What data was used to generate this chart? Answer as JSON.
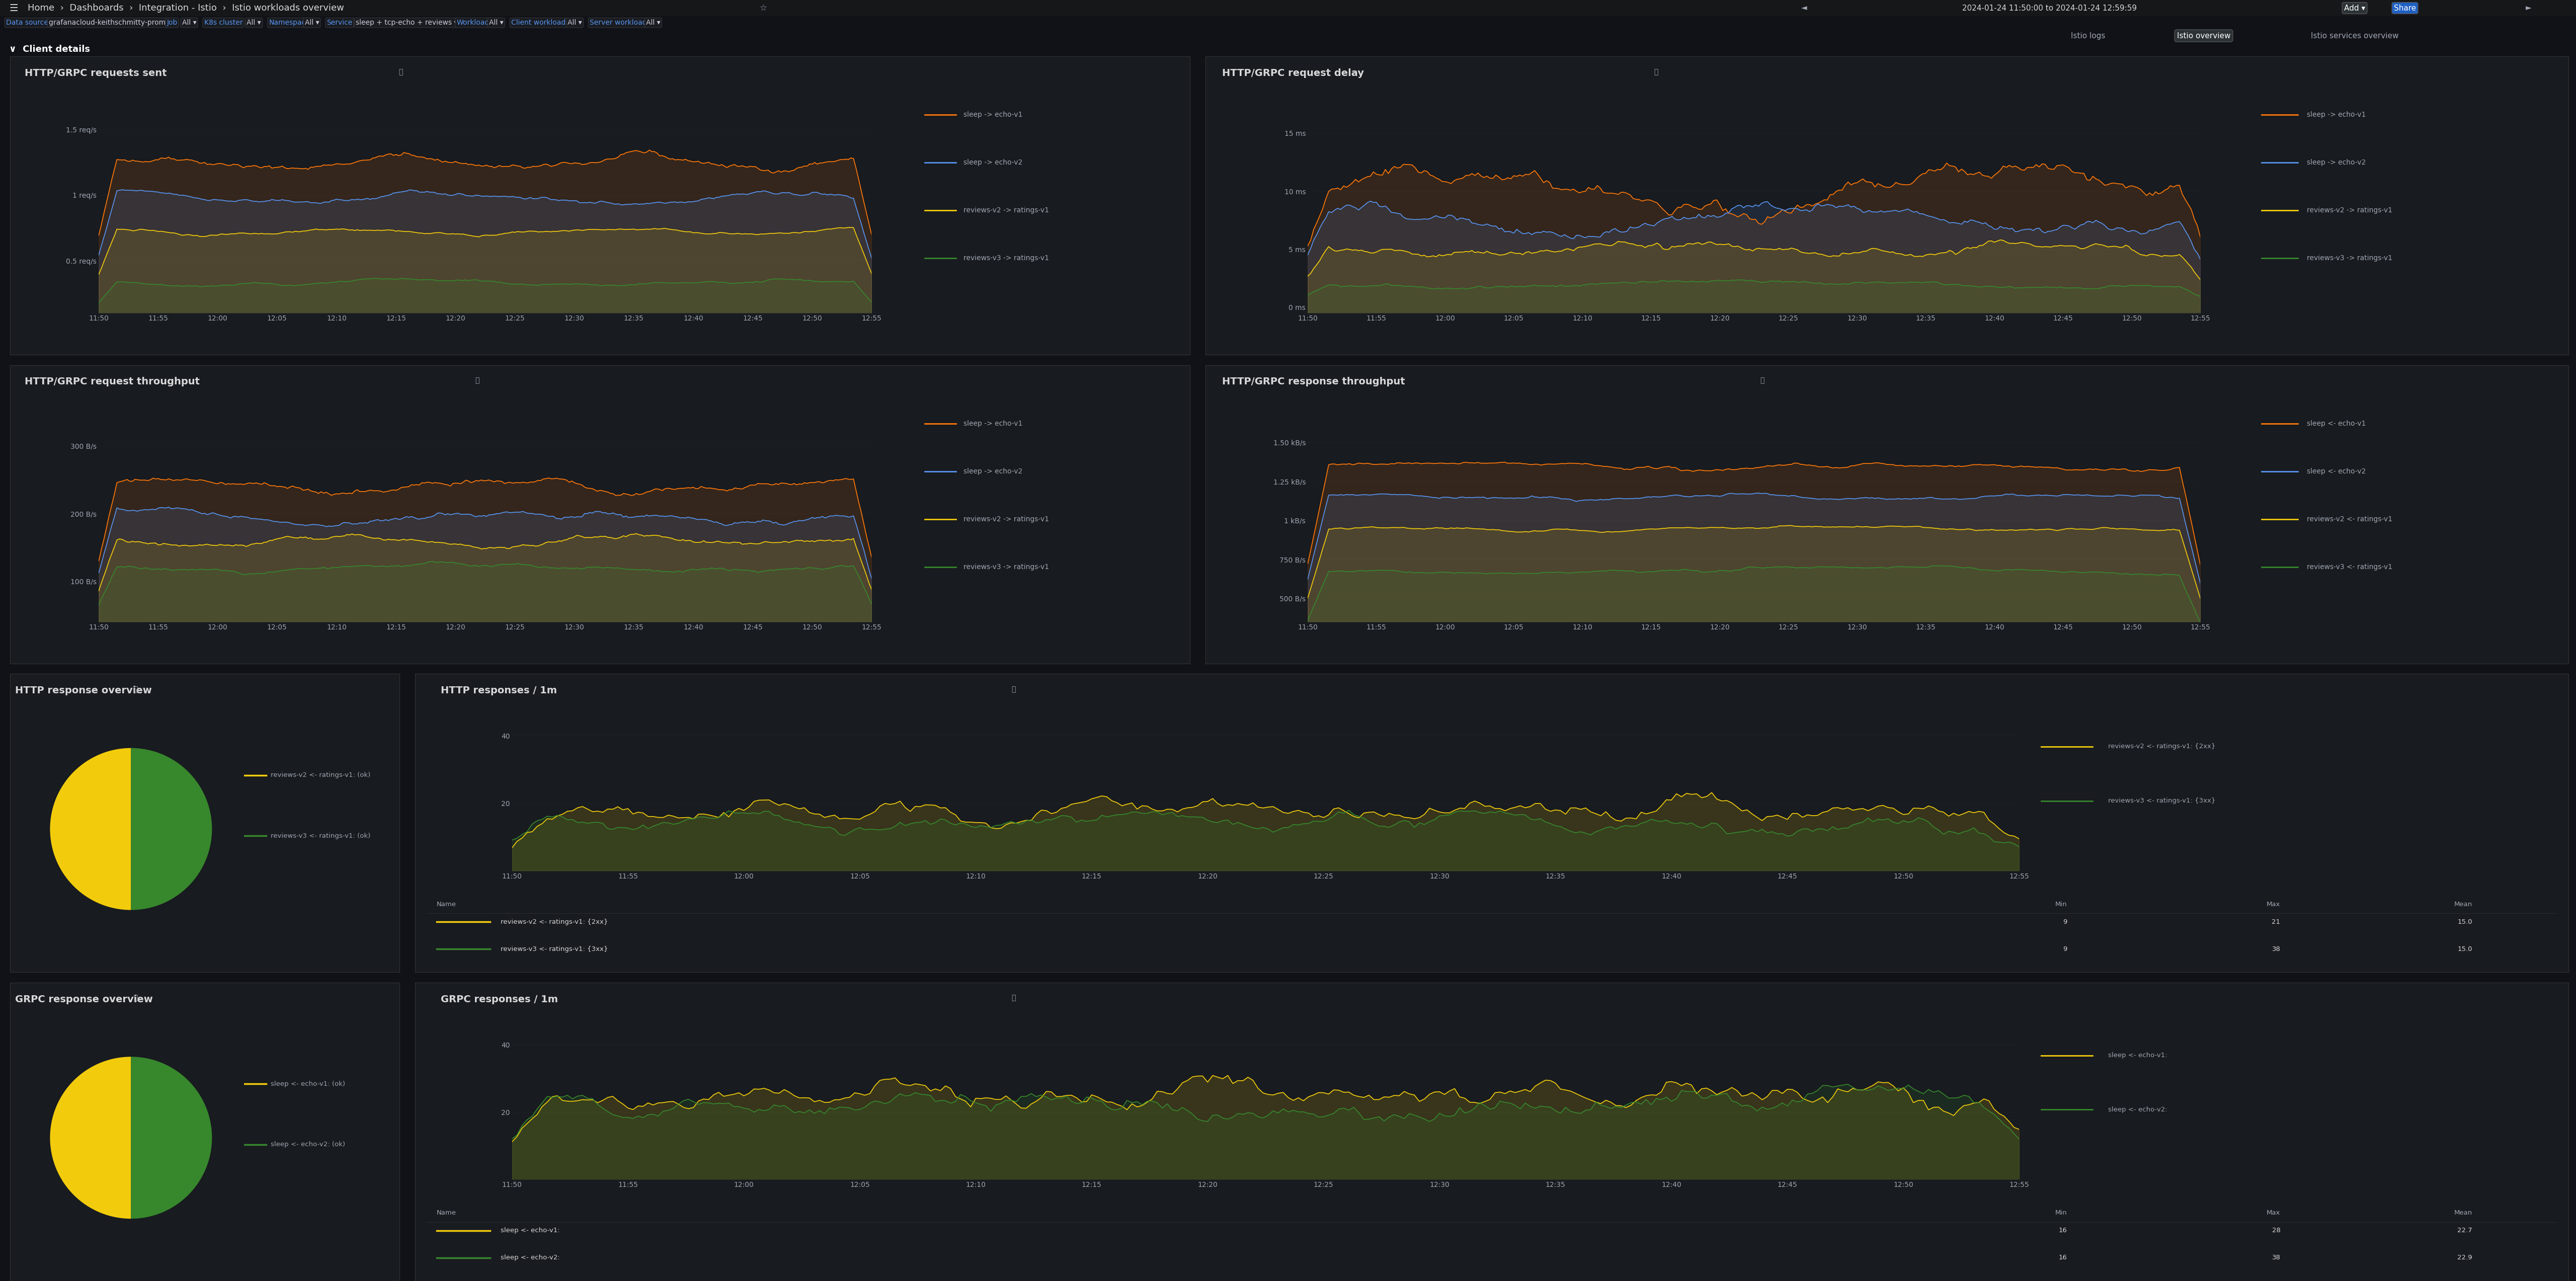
{
  "bg_color": "#111217",
  "panel_bg": "#181b1f",
  "panel_border": "#333333",
  "text_color": "#d8d9da",
  "text_muted": "#9fa7b3",
  "blue_accent": "#5794f2",
  "title_color": "#d8d9da",
  "grid_color": "#222426",
  "time_ticks": [
    "11:50",
    "11:55",
    "12:00",
    "12:05",
    "12:10",
    "12:15",
    "12:20",
    "12:25",
    "12:30",
    "12:35",
    "12:40",
    "12:45",
    "12:50",
    "12:55"
  ],
  "panel1_title": "HTTP/GRPC requests sent",
  "panel1_ylabel_ticks": [
    "0.5 req/s",
    "1 req/s",
    "1.5 req/s"
  ],
  "panel1_ytick_vals": [
    0.5,
    1.0,
    1.5
  ],
  "panel1_legend": [
    "sleep -> echo-v1",
    "sleep -> echo-v2",
    "reviews-v2 -> ratings-v1",
    "reviews-v3 -> ratings-v1"
  ],
  "panel1_colors": [
    "#ff780a",
    "#5794f2",
    "#f2cc0c",
    "#37872d"
  ],
  "panel2_title": "HTTP/GRPC request delay",
  "panel2_ylabel_ticks": [
    "0 ms",
    "5 ms",
    "10 ms",
    "15 ms"
  ],
  "panel2_ytick_vals": [
    0,
    5,
    10,
    15
  ],
  "panel2_legend": [
    "sleep -> echo-v1",
    "sleep -> echo-v2",
    "reviews-v2 -> ratings-v1",
    "reviews-v3 -> ratings-v1"
  ],
  "panel2_colors": [
    "#ff780a",
    "#5794f2",
    "#f2cc0c",
    "#37872d"
  ],
  "panel3_title": "HTTP/GRPC request throughput",
  "panel3_ylabel_ticks": [
    "100 B/s",
    "200 B/s",
    "300 B/s"
  ],
  "panel3_ytick_vals": [
    100,
    200,
    300
  ],
  "panel3_legend": [
    "sleep -> echo-v1",
    "sleep -> echo-v2",
    "reviews-v2 -> ratings-v1",
    "reviews-v3 -> ratings-v1"
  ],
  "panel3_colors": [
    "#ff780a",
    "#5794f2",
    "#f2cc0c",
    "#37872d"
  ],
  "panel4_title": "HTTP/GRPC response throughput",
  "panel4_ylabel_ticks": [
    "500 B/s",
    "750 B/s",
    "1 kB/s",
    "1.25 kB/s",
    "1.50 kB/s"
  ],
  "panel4_ytick_vals": [
    500,
    750,
    1000,
    1250,
    1500
  ],
  "panel4_legend": [
    "sleep <- echo-v1",
    "sleep <- echo-v2",
    "reviews-v2 <- ratings-v1",
    "reviews-v3 <- ratings-v1"
  ],
  "panel4_colors": [
    "#ff780a",
    "#5794f2",
    "#f2cc0c",
    "#37872d"
  ],
  "panel5_title": "HTTP response overview",
  "panel5_legend": [
    "reviews-v2 <- ratings-v1: (ok)",
    "reviews-v3 <- ratings-v1: (ok)"
  ],
  "panel5_colors": [
    "#f2cc0c",
    "#37872d"
  ],
  "panel5_slices": [
    50,
    50
  ],
  "panel6_title": "HTTP responses / 1m",
  "panel6_ytick_labels": [
    "20",
    "40"
  ],
  "panel6_ytick_vals": [
    20,
    40
  ],
  "panel6_legend": [
    "reviews-v2 <- ratings-v1: {2xx}",
    "reviews-v3 <- ratings-v1: {3xx}"
  ],
  "panel6_colors": [
    "#f2cc0c",
    "#37872d"
  ],
  "panel6_table_headers": [
    "Name",
    "Min",
    "Max",
    "Mean"
  ],
  "panel6_table_data": [
    [
      "reviews-v2 <- ratings-v1: {2xx}",
      "9",
      "21",
      "15.0"
    ],
    [
      "reviews-v3 <- ratings-v1: {3xx}",
      "9",
      "38",
      "15.0"
    ]
  ],
  "panel6_table_colors": [
    "#f2cc0c",
    "#37872d"
  ],
  "panel7_title": "GRPC response overview",
  "panel7_legend": [
    "sleep <- echo-v1: (ok)",
    "sleep <- echo-v2: (ok)"
  ],
  "panel7_colors": [
    "#f2cc0c",
    "#37872d"
  ],
  "panel7_slices": [
    50,
    50
  ],
  "panel8_title": "GRPC responses / 1m",
  "panel8_ytick_labels": [
    "20",
    "40"
  ],
  "panel8_ytick_vals": [
    20,
    40
  ],
  "panel8_legend": [
    "sleep <- echo-v1:",
    "sleep <- echo-v2:"
  ],
  "panel8_colors": [
    "#f2cc0c",
    "#37872d"
  ],
  "panel8_table_headers": [
    "Name",
    "Min",
    "Max",
    "Mean"
  ],
  "panel8_table_data": [
    [
      "sleep <- echo-v1:",
      "16",
      "28",
      "22.7"
    ],
    [
      "sleep <- echo-v2:",
      "16",
      "38",
      "22.9"
    ]
  ],
  "panel8_table_colors": [
    "#f2cc0c",
    "#37872d"
  ]
}
